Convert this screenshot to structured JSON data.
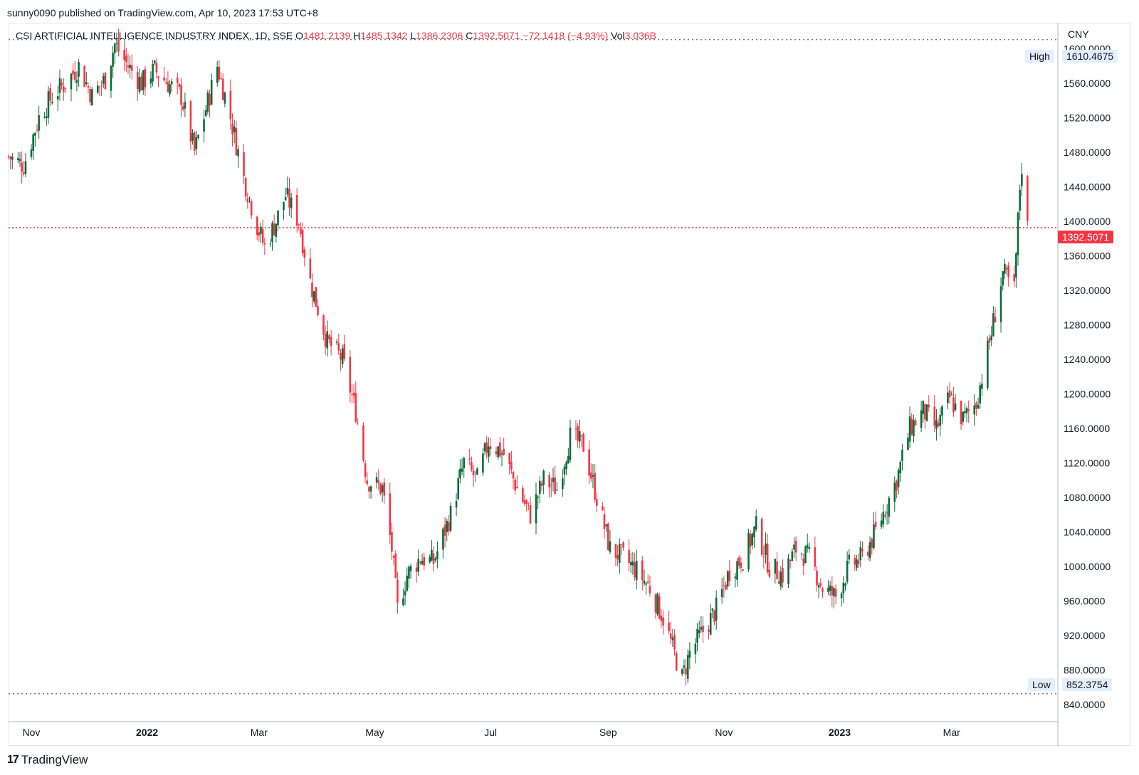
{
  "header": {
    "published": "sunny0090 published on TradingView.com, Apr 10, 2023 17:53 UTC+8"
  },
  "legend": {
    "symbol": "CSI ARTIFICIAL INTELLIGENCE INDUSTRY INDEX, 1D, SSE",
    "o_label": "O",
    "o_value": "1481.2139",
    "h_label": "H",
    "h_value": "1485.1342",
    "l_label": "L",
    "l_value": "1386.2306",
    "c_label": "C",
    "c_value": "1392.5071",
    "change": "−72.1418 (−4.93%)",
    "vol_label": "Vol",
    "vol_value": "3.036B"
  },
  "axis": {
    "currency": "CNY"
  },
  "markers": {
    "high_label": "High",
    "high_value": "1610.4675",
    "low_label": "Low",
    "low_value": "852.3754",
    "last_value": "1392.5071"
  },
  "footer": {
    "brand": "TradingView",
    "brand_logo": "17"
  },
  "colors": {
    "up": "#089981",
    "down": "#f23645",
    "upDark": "#0b6b3a",
    "last": "#f23645",
    "dotted": "#787b86"
  },
  "chart_data": {
    "type": "candlestick",
    "title": "CSI ARTIFICIAL INTELLIGENCE INDUSTRY INDEX, 1D, SSE",
    "ylim": [
      820,
      1630
    ],
    "yticks": [
      "840.0000",
      "880.0000",
      "920.0000",
      "960.0000",
      "1000.0000",
      "1040.0000",
      "1080.0000",
      "1120.0000",
      "1160.0000",
      "1200.0000",
      "1240.0000",
      "1280.0000",
      "1320.0000",
      "1360.0000",
      "1400.0000",
      "1440.0000",
      "1480.0000",
      "1520.0000",
      "1560.0000",
      "1600.0000"
    ],
    "x_range": [
      "2021-10-20",
      "2023-04-26"
    ],
    "xticks": [
      {
        "date": "2021-11-01",
        "label": "Nov",
        "bold": false
      },
      {
        "date": "2022-01-01",
        "label": "2022",
        "bold": true
      },
      {
        "date": "2022-03-01",
        "label": "Mar",
        "bold": false
      },
      {
        "date": "2022-05-01",
        "label": "May",
        "bold": false
      },
      {
        "date": "2022-07-01",
        "label": "Jul",
        "bold": false
      },
      {
        "date": "2022-09-01",
        "label": "Sep",
        "bold": false
      },
      {
        "date": "2022-11-01",
        "label": "Nov",
        "bold": false
      },
      {
        "date": "2023-01-01",
        "label": "2023",
        "bold": true
      },
      {
        "date": "2023-03-01",
        "label": "Mar",
        "bold": false
      }
    ],
    "high": 1610.4675,
    "low": 852.3754,
    "last": 1392.5071,
    "path": [
      [
        "2021-10-20",
        1475
      ],
      [
        "2021-10-28",
        1465
      ],
      [
        "2021-11-05",
        1520
      ],
      [
        "2021-11-12",
        1545
      ],
      [
        "2021-11-19",
        1560
      ],
      [
        "2021-11-26",
        1580
      ],
      [
        "2021-12-03",
        1545
      ],
      [
        "2021-12-10",
        1565
      ],
      [
        "2021-12-15",
        1605
      ],
      [
        "2021-12-22",
        1580
      ],
      [
        "2021-12-29",
        1560
      ],
      [
        "2022-01-05",
        1575
      ],
      [
        "2022-01-12",
        1560
      ],
      [
        "2022-01-19",
        1545
      ],
      [
        "2022-01-26",
        1480
      ],
      [
        "2022-02-07",
        1580
      ],
      [
        "2022-02-14",
        1520
      ],
      [
        "2022-02-21",
        1450
      ],
      [
        "2022-02-28",
        1395
      ],
      [
        "2022-03-04",
        1370
      ],
      [
        "2022-03-10",
        1400
      ],
      [
        "2022-03-15",
        1430
      ],
      [
        "2022-03-22",
        1400
      ],
      [
        "2022-03-28",
        1330
      ],
      [
        "2022-04-06",
        1260
      ],
      [
        "2022-04-14",
        1240
      ],
      [
        "2022-04-21",
        1180
      ],
      [
        "2022-04-27",
        1100
      ],
      [
        "2022-05-05",
        1090
      ],
      [
        "2022-05-10",
        1020
      ],
      [
        "2022-05-13",
        950
      ],
      [
        "2022-05-18",
        990
      ],
      [
        "2022-05-25",
        1010
      ],
      [
        "2022-06-01",
        1005
      ],
      [
        "2022-06-10",
        1060
      ],
      [
        "2022-06-17",
        1120
      ],
      [
        "2022-06-24",
        1100
      ],
      [
        "2022-06-30",
        1145
      ],
      [
        "2022-07-08",
        1130
      ],
      [
        "2022-07-15",
        1090
      ],
      [
        "2022-07-22",
        1060
      ],
      [
        "2022-07-29",
        1100
      ],
      [
        "2022-08-05",
        1090
      ],
      [
        "2022-08-12",
        1150
      ],
      [
        "2022-08-19",
        1140
      ],
      [
        "2022-08-26",
        1080
      ],
      [
        "2022-09-02",
        1020
      ],
      [
        "2022-09-09",
        1010
      ],
      [
        "2022-09-16",
        995
      ],
      [
        "2022-09-23",
        975
      ],
      [
        "2022-09-30",
        940
      ],
      [
        "2022-10-10",
        870
      ],
      [
        "2022-10-14",
        900
      ],
      [
        "2022-10-21",
        925
      ],
      [
        "2022-10-28",
        950
      ],
      [
        "2022-11-04",
        995
      ],
      [
        "2022-11-11",
        1010
      ],
      [
        "2022-11-18",
        1045
      ],
      [
        "2022-11-25",
        1000
      ],
      [
        "2022-12-02",
        990
      ],
      [
        "2022-12-09",
        1020
      ],
      [
        "2022-12-16",
        1010
      ],
      [
        "2022-12-23",
        975
      ],
      [
        "2022-12-30",
        965
      ],
      [
        "2023-01-06",
        1000
      ],
      [
        "2023-01-13",
        1010
      ],
      [
        "2023-01-20",
        1040
      ],
      [
        "2023-01-31",
        1100
      ],
      [
        "2023-02-07",
        1160
      ],
      [
        "2023-02-14",
        1180
      ],
      [
        "2023-02-21",
        1160
      ],
      [
        "2023-02-28",
        1195
      ],
      [
        "2023-03-07",
        1170
      ],
      [
        "2023-03-14",
        1190
      ],
      [
        "2023-03-21",
        1260
      ],
      [
        "2023-03-28",
        1340
      ],
      [
        "2023-04-03",
        1320
      ],
      [
        "2023-04-06",
        1440
      ],
      [
        "2023-04-07",
        1464
      ],
      [
        "2023-04-10",
        1392.5
      ]
    ]
  }
}
